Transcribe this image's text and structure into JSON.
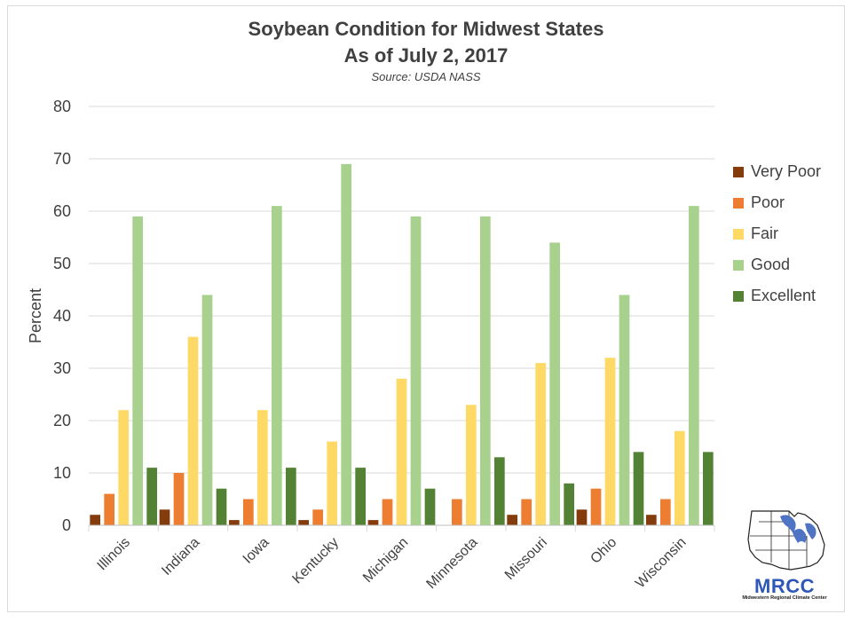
{
  "chart_data": {
    "type": "bar",
    "title": "Soybean Condition for Midwest States",
    "subtitle_line": "As of July 2, 2017",
    "source": "Source: USDA NASS",
    "xlabel": "",
    "ylabel": "Percent",
    "ylim": [
      0,
      80
    ],
    "yticks": [
      0,
      10,
      20,
      30,
      40,
      50,
      60,
      70,
      80
    ],
    "grid": true,
    "legend_position": "right",
    "categories": [
      "Illinois",
      "Indiana",
      "Iowa",
      "Kentucky",
      "Michigan",
      "Minnesota",
      "Missouri",
      "Ohio",
      "Wisconsin"
    ],
    "series": [
      {
        "name": "Very Poor",
        "color": "#843c0c",
        "values": [
          2,
          3,
          1,
          1,
          1,
          0,
          2,
          3,
          2
        ]
      },
      {
        "name": "Poor",
        "color": "#ed7d31",
        "values": [
          6,
          10,
          5,
          3,
          5,
          5,
          5,
          7,
          5
        ]
      },
      {
        "name": "Fair",
        "color": "#ffd966",
        "values": [
          22,
          36,
          22,
          16,
          28,
          23,
          31,
          32,
          18
        ]
      },
      {
        "name": "Good",
        "color": "#a9d18e",
        "values": [
          59,
          44,
          61,
          69,
          59,
          59,
          54,
          44,
          61
        ]
      },
      {
        "name": "Excellent",
        "color": "#548235",
        "values": [
          11,
          7,
          11,
          11,
          7,
          13,
          8,
          14,
          14
        ]
      }
    ]
  },
  "logo": {
    "text": "MRCC",
    "subtext": "Midwestern Regional Climate Center"
  }
}
